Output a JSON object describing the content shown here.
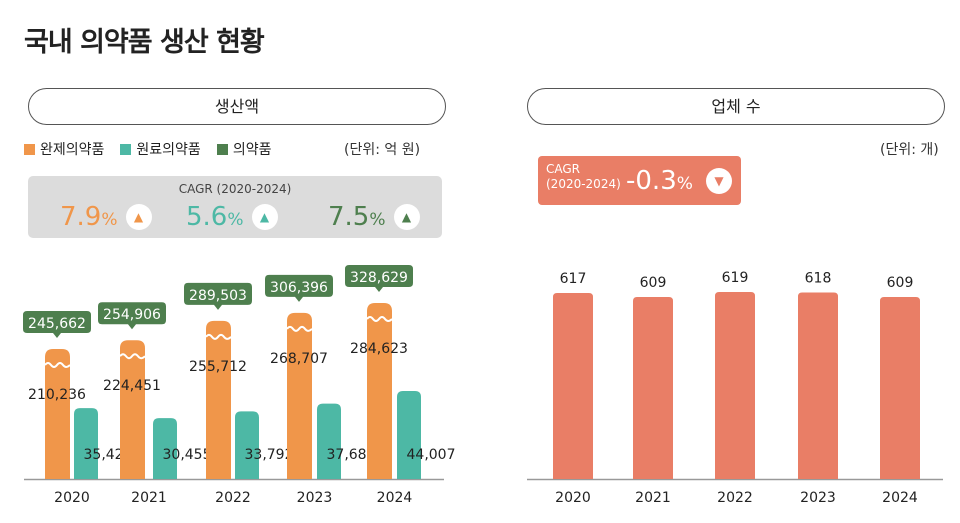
{
  "title": "국내 의약품 생산 현황",
  "colors": {
    "finished": "#f0964a",
    "raw": "#4db8a5",
    "total": "#4e7f4e",
    "companies": "#e97e66"
  },
  "chart_data": [
    {
      "type": "bar",
      "title": "생산액",
      "unit": "(단위: 억 원)",
      "categories": [
        "2020",
        "2021",
        "2022",
        "2023",
        "2024"
      ],
      "series": [
        {
          "name": "완제의약품",
          "values": [
            210236,
            224451,
            255712,
            268707,
            284623
          ]
        },
        {
          "name": "원료의약품",
          "values": [
            35426,
            30455,
            33792,
            37689,
            44007
          ]
        },
        {
          "name": "의약품",
          "values": [
            245662,
            254906,
            289503,
            306396,
            328629
          ]
        }
      ],
      "value_labels": {
        "finished": [
          "210,236",
          "224,451",
          "255,712",
          "268,707",
          "284,623"
        ],
        "raw": [
          "35,426",
          "30,455",
          "33,792",
          "37,689",
          "44,007"
        ],
        "total": [
          "245,662",
          "254,906",
          "289,503",
          "306,396",
          "328,629"
        ]
      },
      "axis_break": true,
      "cagr": {
        "label": "CAGR (2020-2024)",
        "items": [
          {
            "value": "7.9",
            "pct": "%",
            "dir": "up",
            "series": "완제의약품"
          },
          {
            "value": "5.6",
            "pct": "%",
            "dir": "up",
            "series": "원료의약품"
          },
          {
            "value": "7.5",
            "pct": "%",
            "dir": "up",
            "series": "의약품"
          }
        ]
      }
    },
    {
      "type": "bar",
      "title": "업체 수",
      "unit": "(단위: 개)",
      "categories": [
        "2020",
        "2021",
        "2022",
        "2023",
        "2024"
      ],
      "values": [
        617,
        609,
        619,
        618,
        609
      ],
      "cagr": {
        "label1": "CAGR",
        "label2": "(2020-2024)",
        "value": "-0.3",
        "pct": "%",
        "dir": "down"
      }
    }
  ]
}
